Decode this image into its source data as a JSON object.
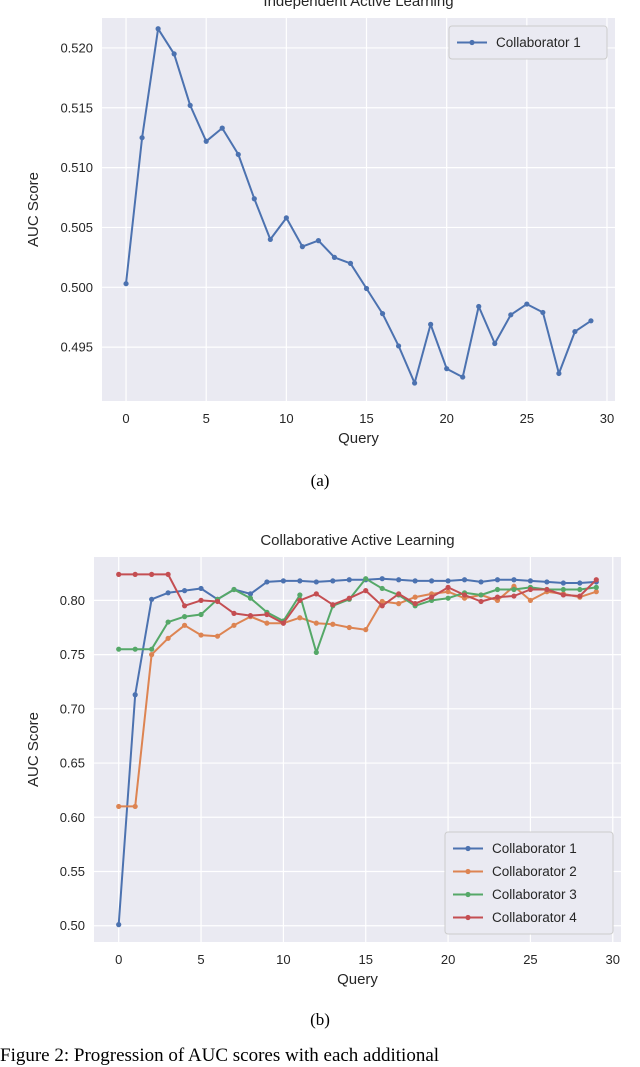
{
  "chart_data": [
    {
      "type": "line",
      "title": "Independent Active Learning",
      "xlabel": "Query",
      "ylabel": "AUC Score",
      "xlim": [
        -1.5,
        30.5
      ],
      "ylim": [
        0.4905,
        0.5225
      ],
      "xticks": [
        0,
        5,
        10,
        15,
        20,
        25,
        30
      ],
      "yticks": [
        0.495,
        0.5,
        0.505,
        0.51,
        0.515,
        0.52
      ],
      "ytick_labels": [
        "0.495",
        "0.500",
        "0.505",
        "0.510",
        "0.515",
        "0.520"
      ],
      "grid": true,
      "legend_position": "top-right",
      "x": [
        0,
        1,
        2,
        3,
        4,
        5,
        6,
        7,
        8,
        9,
        10,
        11,
        12,
        13,
        14,
        15,
        16,
        17,
        18,
        19,
        20,
        21,
        22,
        23,
        24,
        25,
        26,
        27,
        28,
        29
      ],
      "series": [
        {
          "name": "Collaborator 1",
          "color": "#4c72b0",
          "values": [
            0.5003,
            0.5125,
            0.5216,
            0.5195,
            0.5152,
            0.5122,
            0.5133,
            0.5111,
            0.5074,
            0.504,
            0.5058,
            0.5034,
            0.5039,
            0.5025,
            0.502,
            0.4999,
            0.4978,
            0.4951,
            0.492,
            0.4969,
            0.4932,
            0.4925,
            0.4984,
            0.4953,
            0.4977,
            0.4986,
            0.4979,
            0.4928,
            0.4963,
            0.4972
          ]
        }
      ]
    },
    {
      "type": "line",
      "title": "Collaborative Active Learning",
      "xlabel": "Query",
      "ylabel": "AUC Score",
      "xlim": [
        -1.5,
        30.5
      ],
      "ylim": [
        0.485,
        0.84
      ],
      "xticks": [
        0,
        5,
        10,
        15,
        20,
        25,
        30
      ],
      "yticks": [
        0.5,
        0.55,
        0.6,
        0.65,
        0.7,
        0.75,
        0.8
      ],
      "ytick_labels": [
        "0.50",
        "0.55",
        "0.60",
        "0.65",
        "0.70",
        "0.75",
        "0.80"
      ],
      "grid": true,
      "legend_position": "bottom-right",
      "x": [
        0,
        1,
        2,
        3,
        4,
        5,
        6,
        7,
        8,
        9,
        10,
        11,
        12,
        13,
        14,
        15,
        16,
        17,
        18,
        19,
        20,
        21,
        22,
        23,
        24,
        25,
        26,
        27,
        28,
        29
      ],
      "series": [
        {
          "name": "Collaborator 1",
          "color": "#4c72b0",
          "values": [
            0.501,
            0.713,
            0.801,
            0.807,
            0.809,
            0.811,
            0.801,
            0.81,
            0.806,
            0.817,
            0.818,
            0.818,
            0.817,
            0.818,
            0.819,
            0.819,
            0.82,
            0.819,
            0.818,
            0.818,
            0.818,
            0.819,
            0.817,
            0.819,
            0.819,
            0.818,
            0.817,
            0.816,
            0.816,
            0.817
          ]
        },
        {
          "name": "Collaborator 2",
          "color": "#dd8452",
          "values": [
            0.61,
            0.61,
            0.75,
            0.765,
            0.777,
            0.768,
            0.767,
            0.777,
            0.785,
            0.779,
            0.779,
            0.784,
            0.779,
            0.778,
            0.775,
            0.773,
            0.799,
            0.797,
            0.803,
            0.806,
            0.808,
            0.802,
            0.805,
            0.8,
            0.813,
            0.8,
            0.808,
            0.806,
            0.803,
            0.808
          ]
        },
        {
          "name": "Collaborator 3",
          "color": "#55a868",
          "values": [
            0.755,
            0.755,
            0.755,
            0.78,
            0.785,
            0.787,
            0.801,
            0.81,
            0.802,
            0.789,
            0.781,
            0.805,
            0.752,
            0.795,
            0.801,
            0.82,
            0.811,
            0.805,
            0.795,
            0.8,
            0.802,
            0.807,
            0.805,
            0.81,
            0.81,
            0.812,
            0.81,
            0.81,
            0.81,
            0.812
          ]
        },
        {
          "name": "Collaborator 4",
          "color": "#c44e52",
          "values": [
            0.824,
            0.824,
            0.824,
            0.824,
            0.795,
            0.8,
            0.799,
            0.788,
            0.786,
            0.787,
            0.779,
            0.8,
            0.806,
            0.796,
            0.802,
            0.809,
            0.795,
            0.806,
            0.797,
            0.803,
            0.812,
            0.805,
            0.799,
            0.803,
            0.804,
            0.81,
            0.81,
            0.805,
            0.804,
            0.819
          ]
        }
      ]
    }
  ],
  "captions": {
    "sub_a": "(a)",
    "sub_b": "(b)",
    "figure": "Figure 2: Progression of AUC scores with each additional"
  }
}
